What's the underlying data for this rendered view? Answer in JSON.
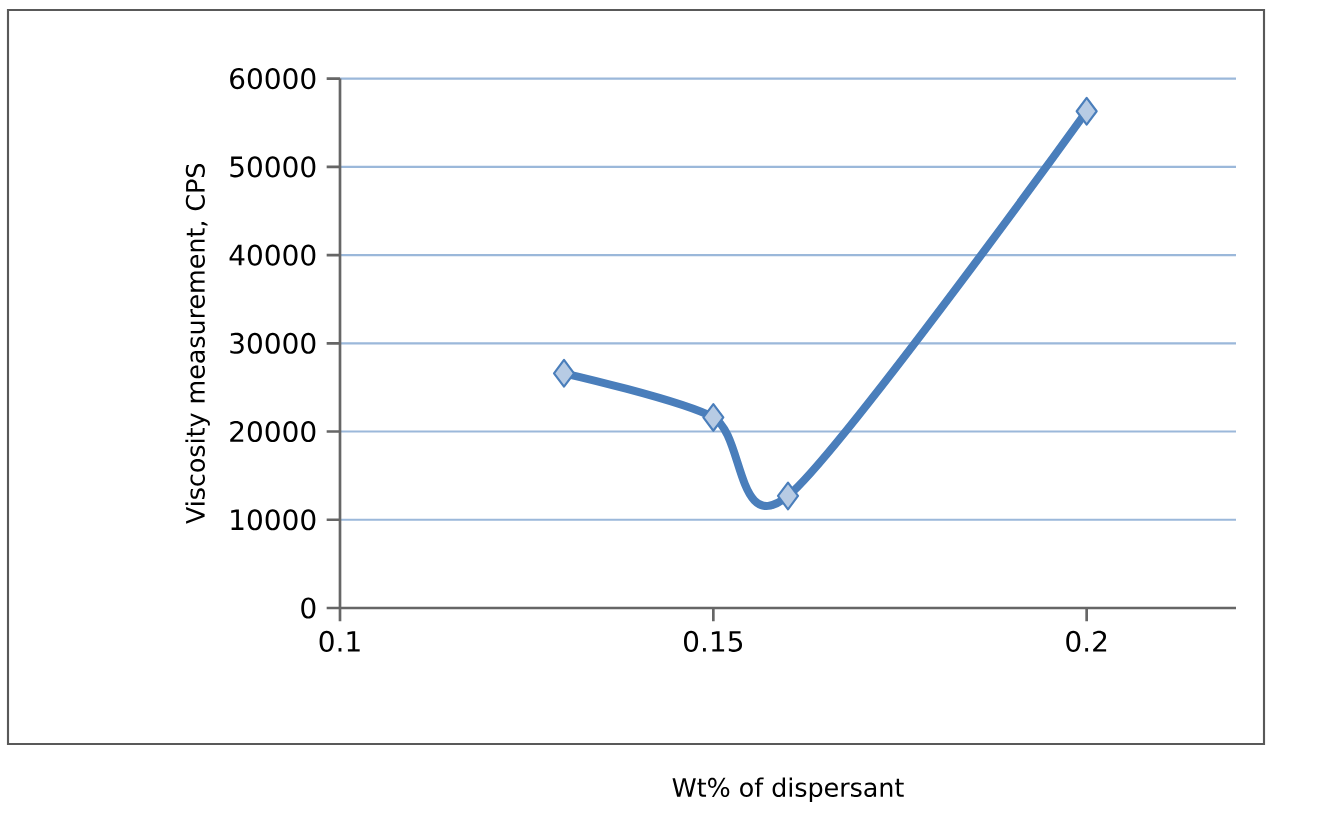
{
  "chart_data": {
    "type": "line",
    "xlabel": "Wt% of dispersant",
    "ylabel": "Viscosity measurement, CPS",
    "x": [
      0.13,
      0.15,
      0.16,
      0.2
    ],
    "series": [
      {
        "color": "#4a7ebb",
        "values": [
          26600,
          21600,
          12700,
          56300
        ]
      }
    ],
    "xlim": [
      0.1,
      0.22
    ],
    "xticks": [
      0.1,
      0.15,
      0.2
    ],
    "ylim": [
      0,
      60000
    ],
    "yticks": [
      0,
      10000,
      20000,
      30000,
      40000,
      50000,
      60000
    ],
    "grid": "y",
    "marker": "diamond",
    "line_style": "solid"
  }
}
